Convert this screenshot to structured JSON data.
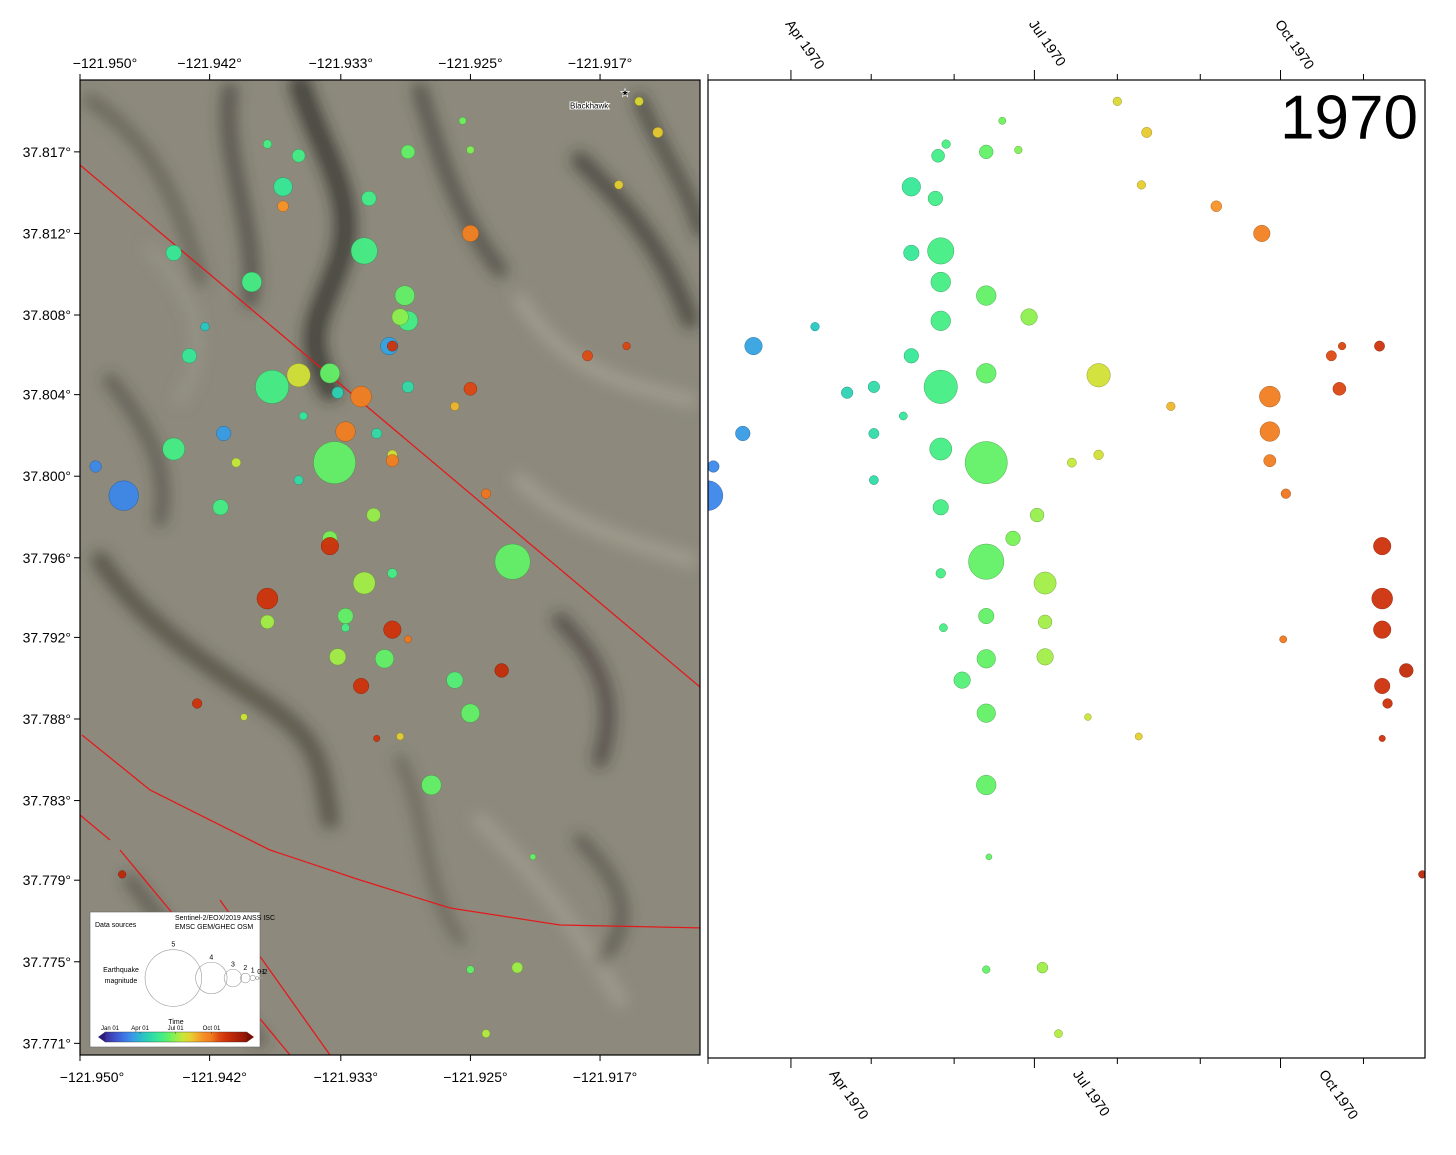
{
  "map": {
    "xlim": [
      -121.95,
      -121.9103
    ],
    "ylim": [
      37.7702,
      37.8204
    ],
    "lon_ticks": [
      {
        "value": -121.95,
        "label": "−121.950°"
      },
      {
        "value": -121.9417,
        "label": "−121.942°"
      },
      {
        "value": -121.9333,
        "label": "−121.933°"
      },
      {
        "value": -121.925,
        "label": "−121.925°"
      },
      {
        "value": -121.9167,
        "label": "−121.917°"
      }
    ],
    "lat_ticks": [
      {
        "value": 37.8167,
        "label": "37.817°"
      },
      {
        "value": 37.8125,
        "label": "37.812°"
      },
      {
        "value": 37.8083,
        "label": "37.808°"
      },
      {
        "value": 37.8042,
        "label": "37.804°"
      },
      {
        "value": 37.8,
        "label": "37.800°"
      },
      {
        "value": 37.7958,
        "label": "37.796°"
      },
      {
        "value": 37.7917,
        "label": "37.792°"
      },
      {
        "value": 37.7875,
        "label": "37.788°"
      },
      {
        "value": 37.7833,
        "label": "37.783°"
      },
      {
        "value": 37.7792,
        "label": "37.779°"
      },
      {
        "value": 37.775,
        "label": "37.775°"
      },
      {
        "value": 37.7708,
        "label": "37.771°"
      }
    ],
    "places": [
      {
        "name": "Blackhawk",
        "lon": -121.9151,
        "lat": 37.8197
      }
    ],
    "legend": {
      "sources_title": "Data sources",
      "sources": [
        "Sentinel-2/EOX/2019 ANSS ISC",
        "EMSC GEM/GHEC OSM"
      ],
      "size_title": [
        "Earthquake",
        "magnitude"
      ],
      "sizes": [
        5,
        4,
        3,
        2,
        1,
        0,
        -1,
        -2
      ],
      "time_title": "Time",
      "time_ticks": [
        {
          "value": "1970-01-01",
          "label": "Jan 01"
        },
        {
          "value": "1970-04-01",
          "label": "Apr 01"
        },
        {
          "value": "1970-07-01",
          "label": "Jul 01"
        },
        {
          "value": "1970-10-01",
          "label": "Oct 01"
        }
      ],
      "time_range": [
        "1970-01-01",
        "1970-12-31"
      ]
    }
  },
  "timeline": {
    "title": "1970",
    "xlim": [
      "1970-03-01",
      "1970-11-24"
    ],
    "xticks": [
      {
        "value": "1970-04-01",
        "label": "Apr 1970"
      },
      {
        "value": "1970-07-01",
        "label": "Jul 1970"
      },
      {
        "value": "1970-10-01",
        "label": "Oct 1970"
      }
    ],
    "xminorticks": [
      "1970-03-01",
      "1970-05-01",
      "1970-06-01",
      "1970-08-01",
      "1970-09-01",
      "1970-11-01"
    ]
  },
  "colormap": [
    {
      "date": "1970-01-01",
      "color": "#3b2b9c"
    },
    {
      "date": "1970-02-15",
      "color": "#3f6ee8"
    },
    {
      "date": "1970-03-10",
      "color": "#3a95ea"
    },
    {
      "date": "1970-04-10",
      "color": "#27c7c2"
    },
    {
      "date": "1970-05-20",
      "color": "#39ec92"
    },
    {
      "date": "1970-06-20",
      "color": "#6ef25a"
    },
    {
      "date": "1970-07-15",
      "color": "#c4ea3a"
    },
    {
      "date": "1970-08-10",
      "color": "#e6cf2e"
    },
    {
      "date": "1970-09-05",
      "color": "#f99428"
    },
    {
      "date": "1970-10-01",
      "color": "#f07a20"
    },
    {
      "date": "1970-10-20",
      "color": "#dd4a12"
    },
    {
      "date": "1970-11-10",
      "color": "#cc300a"
    },
    {
      "date": "1970-12-31",
      "color": "#8e1206"
    }
  ],
  "events": {
    "date": [
      "1970-03-01",
      "1970-03-03",
      "1970-03-14",
      "1970-03-18",
      "1970-04-10",
      "1970-04-22",
      "1970-05-02",
      "1970-05-02",
      "1970-05-02",
      "1970-05-13",
      "1970-05-16",
      "1970-05-16",
      "1970-05-16",
      "1970-05-26",
      "1970-05-27",
      "1970-05-27",
      "1970-05-27",
      "1970-05-27",
      "1970-05-27",
      "1970-05-27",
      "1970-05-27",
      "1970-05-28",
      "1970-05-25",
      "1970-05-29",
      "1970-06-13",
      "1970-06-13",
      "1970-06-13",
      "1970-06-13",
      "1970-06-13",
      "1970-06-13",
      "1970-06-13",
      "1970-06-13",
      "1970-06-13",
      "1970-06-14",
      "1970-06-13",
      "1970-06-04",
      "1970-06-19",
      "1970-06-23",
      "1970-06-25",
      "1970-06-29",
      "1970-07-02",
      "1970-07-05",
      "1970-07-05",
      "1970-07-05",
      "1970-07-04",
      "1970-07-10",
      "1970-07-15",
      "1970-07-25",
      "1970-07-25",
      "1970-07-21",
      "1970-08-01",
      "1970-08-12",
      "1970-08-10",
      "1970-08-09",
      "1970-08-21",
      "1970-09-07",
      "1970-09-24",
      "1970-09-27",
      "1970-09-27",
      "1970-09-27",
      "1970-10-03",
      "1970-10-02",
      "1970-10-20",
      "1970-10-23",
      "1970-10-24",
      "1970-11-07",
      "1970-11-08",
      "1970-11-08",
      "1970-11-08",
      "1970-11-08",
      "1970-11-10",
      "1970-11-17",
      "1970-11-08",
      "1970-11-23"
    ],
    "lat": [
      37.799,
      37.8005,
      37.8022,
      37.8067,
      37.8077,
      37.8043,
      37.8046,
      37.8022,
      37.7998,
      37.8031,
      37.8149,
      37.8115,
      37.8062,
      37.8165,
      37.8116,
      37.81,
      37.808,
      37.8046,
      37.8014,
      37.7984,
      37.795,
      37.7922,
      37.8143,
      37.8171,
      37.8167,
      37.8093,
      37.8053,
      37.8007,
      37.7956,
      37.7928,
      37.7906,
      37.7878,
      37.7841,
      37.7804,
      37.7746,
      37.7895,
      37.8183,
      37.7968,
      37.8168,
      37.8082,
      37.798,
      37.7945,
      37.7925,
      37.7907,
      37.7747,
      37.7713,
      37.8007,
      37.8052,
      37.8011,
      37.7876,
      37.8193,
      37.8177,
      37.815,
      37.7866,
      37.8036,
      37.8139,
      37.8125,
      37.8041,
      37.8023,
      37.8008,
      37.7991,
      37.7916,
      37.8062,
      37.8045,
      37.8067,
      37.8067,
      37.7964,
      37.7937,
      37.7921,
      37.7892,
      37.7883,
      37.79,
      37.7865,
      37.7795
    ],
    "lon": [
      -121.9472,
      -121.949,
      -121.9408,
      -121.9302,
      -121.942,
      -121.9335,
      -121.929,
      -121.931,
      -121.936,
      -121.9357,
      -121.937,
      -121.944,
      -121.943,
      -121.936,
      -121.9318,
      -121.939,
      -121.929,
      -121.9377,
      -121.944,
      -121.941,
      -121.93,
      -121.933,
      -121.9315,
      -121.938,
      -121.929,
      -121.9292,
      -121.934,
      -121.9337,
      -121.9223,
      -121.933,
      -121.9305,
      -121.925,
      -121.9275,
      -121.921,
      -121.925,
      -121.926,
      -121.9255,
      -121.934,
      -121.925,
      -121.9295,
      -121.9312,
      -121.9318,
      -121.938,
      -121.9335,
      -121.922,
      -121.924,
      -121.94,
      -121.936,
      -121.93,
      -121.9395,
      -121.9142,
      -121.913,
      -121.9155,
      -121.9295,
      -121.926,
      -121.937,
      -121.925,
      -121.932,
      -121.933,
      -121.93,
      -121.924,
      -121.929,
      -121.9175,
      -121.925,
      -121.915,
      -121.93,
      -121.934,
      -121.938,
      -121.93,
      -121.932,
      -121.9425,
      -121.923,
      -121.931,
      -121.9473
    ],
    "mag": [
      3.9,
      2.3,
      2.7,
      3.0,
      1.8,
      2.3,
      2.3,
      2.1,
      1.9,
      1.7,
      3.1,
      2.8,
      2.7,
      2.5,
      3.7,
      3.2,
      3.2,
      4.1,
      3.4,
      2.8,
      2.0,
      1.7,
      2.7,
      1.8,
      2.6,
      3.2,
      3.2,
      4.5,
      4.2,
      2.8,
      3.1,
      3.1,
      3.2,
      1.2,
      1.6,
      2.9,
      1.5,
      2.7,
      1.6,
      2.9,
      2.6,
      3.4,
      2.6,
      2.9,
      2.2,
      1.7,
      1.9,
      3.5,
      2.0,
      1.4,
      1.8,
      2.1,
      1.8,
      1.5,
      1.8,
      2.2,
      2.9,
      3.3,
      3.2,
      2.4,
      2.0,
      1.5,
      2.1,
      2.5,
      1.6,
      2.1,
      3.0,
      3.3,
      3.0,
      2.8,
      2.0,
      2.6,
      1.3,
      1.6
    ]
  }
}
